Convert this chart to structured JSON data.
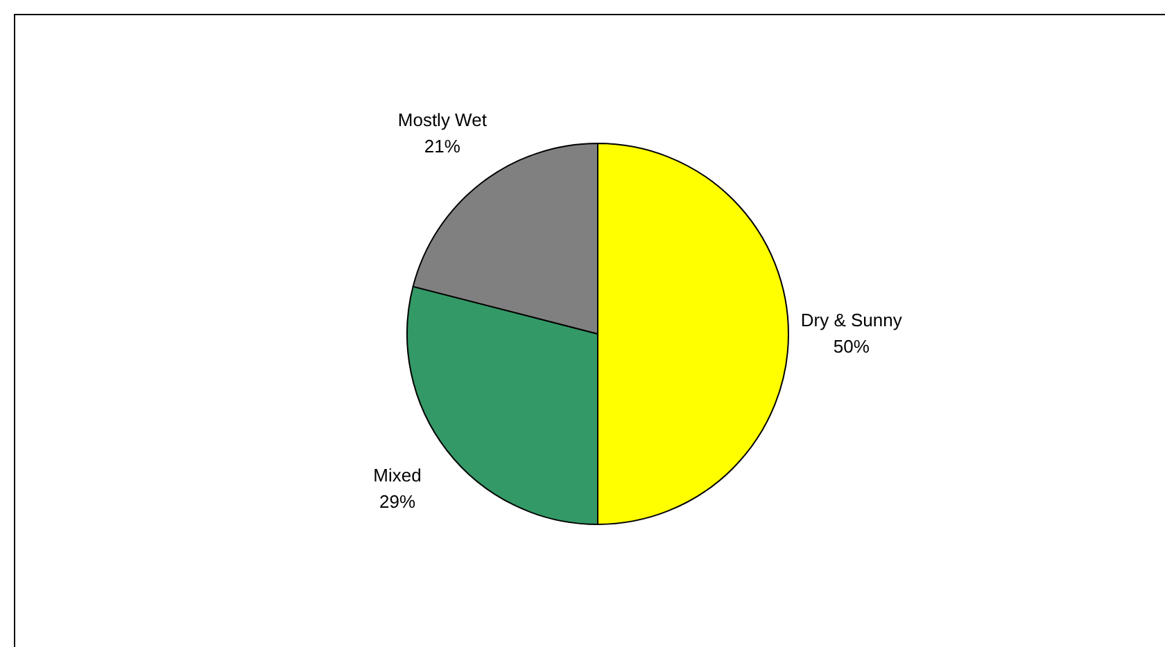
{
  "chart_data": {
    "type": "pie",
    "categories": [
      "Dry & Sunny",
      "Mixed",
      "Mostly Wet"
    ],
    "values": [
      50,
      29,
      21
    ],
    "colors": [
      "#ffff00",
      "#339966",
      "#808080"
    ],
    "value_labels": [
      "50%",
      "29%",
      "21%"
    ],
    "legend": false
  }
}
